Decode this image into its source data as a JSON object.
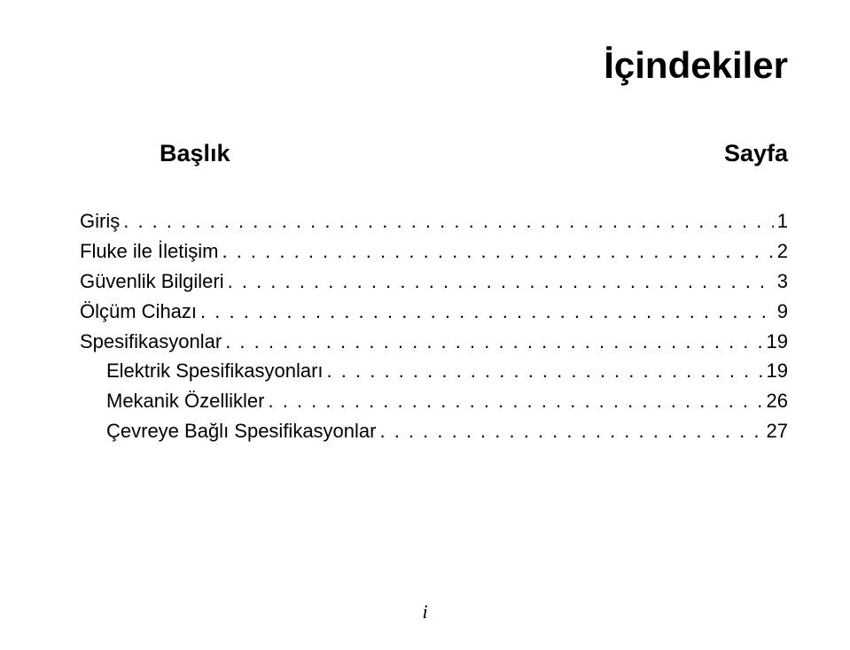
{
  "title": "İçindekiler",
  "title_fontsize": 42,
  "header_left": "Başlık",
  "header_right": "Sayfa",
  "header_fontsize": 27,
  "entry_fontsize": 22,
  "entries": [
    {
      "label": "Giriş",
      "page": "1",
      "indent": 0
    },
    {
      "label": "Fluke ile İletişim",
      "page": "2",
      "indent": 0
    },
    {
      "label": "Güvenlik Bilgileri",
      "page": "3",
      "indent": 0
    },
    {
      "label": "Ölçüm Cihazı",
      "page": "9",
      "indent": 0
    },
    {
      "label": "Spesifikasyonlar",
      "page": "19",
      "indent": 0
    },
    {
      "label": "Elektrik Spesifikasyonları",
      "page": "19",
      "indent": 1
    },
    {
      "label": "Mekanik Özellikler",
      "page": "26",
      "indent": 1
    },
    {
      "label": "Çevreye Bağlı Spesifikasyonlar",
      "page": "27",
      "indent": 1
    }
  ],
  "leader_char": ".",
  "page_num": "i",
  "text_color": "#000000",
  "background_color": "#ffffff"
}
